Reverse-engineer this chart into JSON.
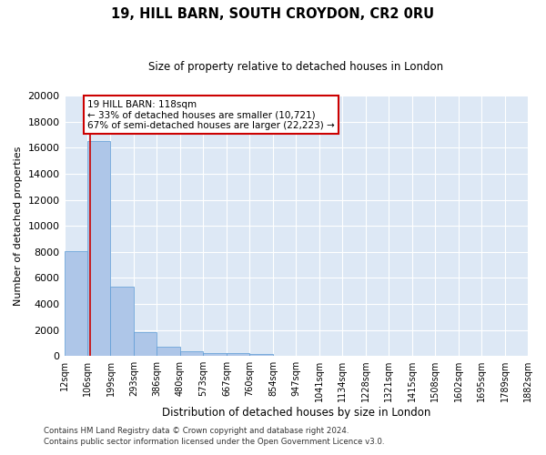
{
  "title1": "19, HILL BARN, SOUTH CROYDON, CR2 0RU",
  "title2": "Size of property relative to detached houses in London",
  "xlabel": "Distribution of detached houses by size in London",
  "ylabel": "Number of detached properties",
  "bar_color": "#aec6e8",
  "bar_edge_color": "#5b9bd5",
  "background_color": "#dde8f5",
  "grid_color": "#ffffff",
  "annotation_text": "19 HILL BARN: 118sqm\n← 33% of detached houses are smaller (10,721)\n67% of semi-detached houses are larger (22,223) →",
  "property_line_x": 118,
  "property_line_color": "#cc0000",
  "annotation_box_color": "#ffffff",
  "annotation_box_edge_color": "#cc0000",
  "bin_edges": [
    12,
    106,
    199,
    293,
    386,
    480,
    573,
    667,
    760,
    854,
    947,
    1041,
    1134,
    1228,
    1321,
    1415,
    1508,
    1602,
    1695,
    1789,
    1882
  ],
  "bar_heights": [
    8050,
    16550,
    5350,
    1850,
    700,
    350,
    250,
    200,
    150,
    0,
    0,
    0,
    0,
    0,
    0,
    0,
    0,
    0,
    0,
    0
  ],
  "ylim": [
    0,
    20000
  ],
  "yticks": [
    0,
    2000,
    4000,
    6000,
    8000,
    10000,
    12000,
    14000,
    16000,
    18000,
    20000
  ],
  "tick_labels": [
    "12sqm",
    "106sqm",
    "199sqm",
    "293sqm",
    "386sqm",
    "480sqm",
    "573sqm",
    "667sqm",
    "760sqm",
    "854sqm",
    "947sqm",
    "1041sqm",
    "1134sqm",
    "1228sqm",
    "1321sqm",
    "1415sqm",
    "1508sqm",
    "1602sqm",
    "1695sqm",
    "1789sqm",
    "1882sqm"
  ],
  "footer_line1": "Contains HM Land Registry data © Crown copyright and database right 2024.",
  "footer_line2": "Contains public sector information licensed under the Open Government Licence v3.0."
}
